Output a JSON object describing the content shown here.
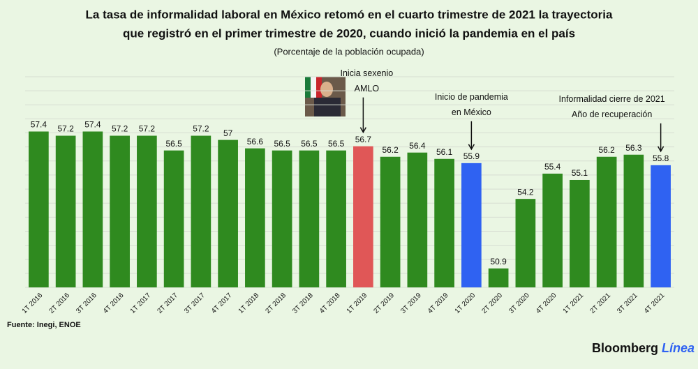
{
  "chart_data": {
    "type": "bar",
    "title": [
      "La tasa de informalidad laboral en México retomó en el cuarto trimestre de 2021 la trayectoria",
      "que registró en el primer trimestre de 2020, cuando inició la pandemia en el país"
    ],
    "subtitle": "(Porcentaje de la población ocupada)",
    "categories": [
      "1T 2016",
      "2T 2016",
      "3T 2016",
      "4T 2016",
      "1T 2017",
      "2T 2017",
      "3T 2017",
      "4T 2017",
      "1T 2018",
      "2T 2018",
      "3T 2018",
      "4T 2018",
      "1T 2019",
      "2T 2019",
      "3T 2019",
      "4T 2019",
      "1T 2020",
      "2T 2020",
      "3T 2020",
      "4T 2020",
      "1T 2021",
      "2T 2021",
      "3T 2021",
      "4T 2021"
    ],
    "values": [
      57.4,
      57.2,
      57.4,
      57.2,
      57.2,
      56.5,
      57.2,
      57,
      56.6,
      56.5,
      56.5,
      56.5,
      56.7,
      56.2,
      56.4,
      56.1,
      55.9,
      50.9,
      54.2,
      55.4,
      55.1,
      56.2,
      56.3,
      55.8
    ],
    "colors": [
      "#2f8a1f",
      "#2f8a1f",
      "#2f8a1f",
      "#2f8a1f",
      "#2f8a1f",
      "#2f8a1f",
      "#2f8a1f",
      "#2f8a1f",
      "#2f8a1f",
      "#2f8a1f",
      "#2f8a1f",
      "#2f8a1f",
      "#e05757",
      "#2f8a1f",
      "#2f8a1f",
      "#2f8a1f",
      "#2f62f2",
      "#2f8a1f",
      "#2f8a1f",
      "#2f8a1f",
      "#2f8a1f",
      "#2f8a1f",
      "#2f8a1f",
      "#2f62f2"
    ],
    "ylim": [
      50,
      60
    ],
    "annotations": [
      {
        "category": "1T 2019",
        "text": [
          "Inicia sexenio",
          "AMLO"
        ]
      },
      {
        "category": "1T 2020",
        "text": [
          "Inicio de pandemia",
          "en México"
        ]
      },
      {
        "category": "4T 2021",
        "text": [
          "Informalidad cierre de 2021",
          "Año de recuperación"
        ]
      }
    ],
    "source": "Fuente: Inegi, ENOE",
    "brand": [
      "Bloomberg",
      "Línea"
    ]
  }
}
